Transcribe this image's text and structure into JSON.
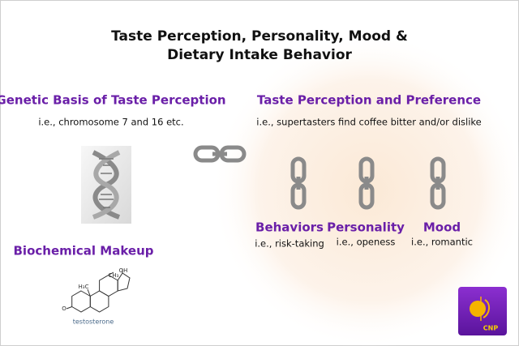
{
  "title": [
    "Taste Perception, Personality, Mood &",
    "Dietary Intake Behavior"
  ],
  "left": {
    "heading": "Genetic Basis of Taste Perception",
    "note": "i.e., chromosome 7 and 16 etc."
  },
  "right": {
    "heading": "Taste Perception and Preference",
    "note": "i.e., supertasters find coffee bitter and/or dislike"
  },
  "traits": [
    {
      "label": "Behaviors",
      "note": "i.e., risk-taking"
    },
    {
      "label": "Personality",
      "note": "i.e., openess"
    },
    {
      "label": "Mood",
      "note": "i.e., romantic"
    }
  ],
  "biochem": {
    "heading": "Biochemical Makeup",
    "molecule": {
      "h3c": "H₃C",
      "ch3": "CH₃",
      "oh": "OH",
      "o": "O",
      "name": "testosterone"
    }
  },
  "logo": "CNP"
}
